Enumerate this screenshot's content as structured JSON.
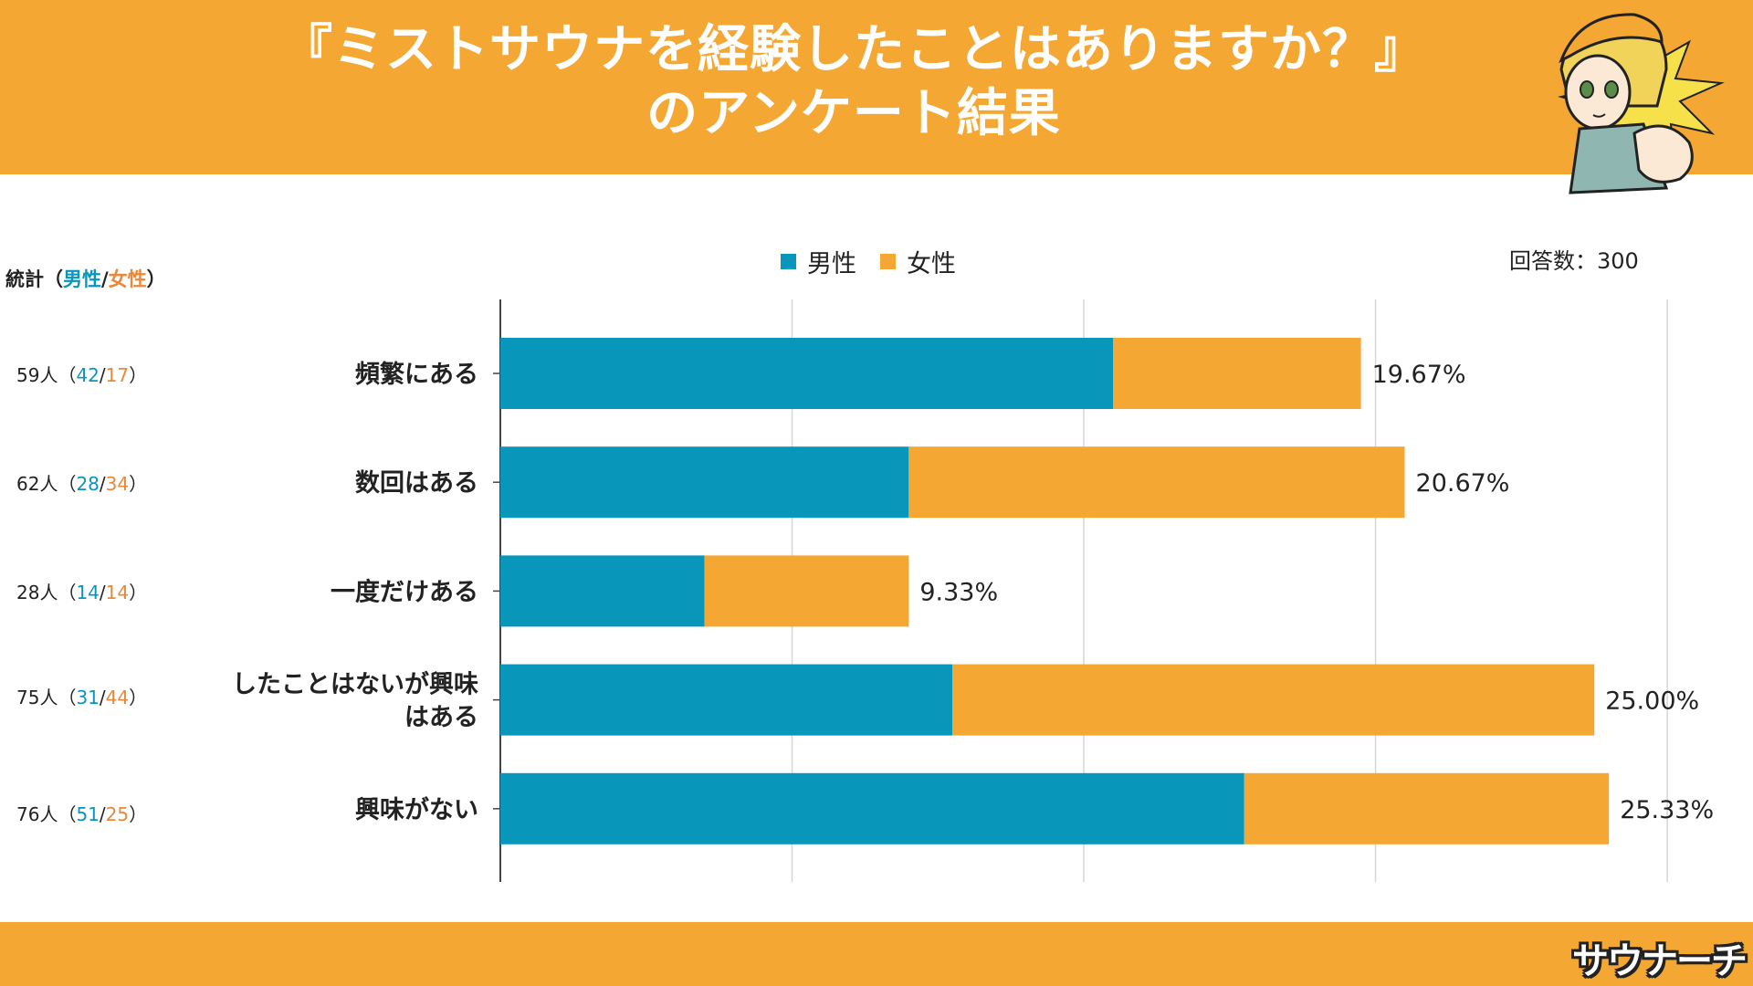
{
  "header": {
    "title_line1": "『ミストサウナを経験したことはありますか？』",
    "title_line2": "のアンケート結果"
  },
  "stats_header": {
    "prefix": "統計（",
    "male": "男性",
    "sep": "/",
    "female": "女性",
    "suffix": "）"
  },
  "stats": [
    {
      "total": "59人",
      "male": "42",
      "female": "17"
    },
    {
      "total": "62人",
      "male": "28",
      "female": "34"
    },
    {
      "total": "28人",
      "male": "14",
      "female": "14"
    },
    {
      "total": "75人",
      "male": "31",
      "female": "44"
    },
    {
      "total": "76人",
      "male": "51",
      "female": "25"
    }
  ],
  "respondents": "回答数：300",
  "logo_text": "サウナーチ",
  "colors": {
    "male": "#0996bb",
    "female": "#f4a733",
    "header": "#f4a733"
  },
  "chart_data": {
    "type": "bar",
    "orientation": "horizontal",
    "stacked": true,
    "legend": "top-center",
    "grid": true,
    "xlim": [
      0,
      84
    ],
    "categories": [
      "頻繁にある",
      "数回はある",
      "一度だけある",
      "したことはないが興味はある",
      "興味がない"
    ],
    "category_lines": [
      [
        "頻繁にある"
      ],
      [
        "数回はある"
      ],
      [
        "一度だけある"
      ],
      [
        "したことはないが興味",
        "はある"
      ],
      [
        "興味がない"
      ]
    ],
    "series": [
      {
        "name": "男性",
        "values": [
          42,
          28,
          14,
          31,
          51
        ]
      },
      {
        "name": "女性",
        "values": [
          17,
          34,
          14,
          44,
          25
        ]
      }
    ],
    "data_labels": [
      "19.67%",
      "20.67%",
      "9.33%",
      "25.00%",
      "25.33%"
    ]
  }
}
